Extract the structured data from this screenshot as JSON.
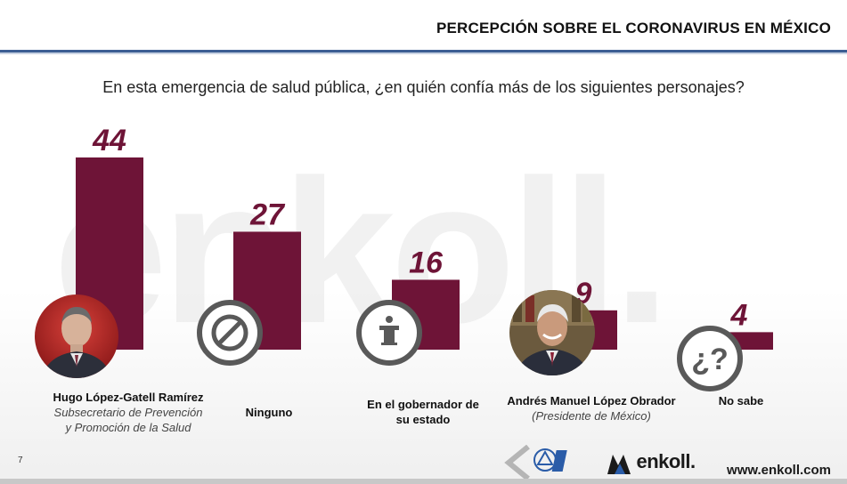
{
  "header": {
    "title": "PERCEPCIÓN SOBRE EL CORONAVIRUS EN MÉXICO"
  },
  "question": "En esta emergencia de salud pública, ¿en quién confía más de los siguientes personajes?",
  "watermark_text": "enkoll.",
  "colors": {
    "bar": "#6e1437",
    "accent_line": "#3c5e93",
    "icon_gray": "#595959"
  },
  "chart_data": {
    "type": "bar",
    "title": "",
    "categories": [
      "Hugo López-Gatell Ramírez",
      "Ninguno",
      "En el gobernador de su estado",
      "Andrés Manuel López Obrador",
      "No sabe"
    ],
    "values": [
      44,
      27,
      16,
      9,
      4
    ],
    "data_labels": [
      "44",
      "27",
      "16",
      "9",
      "4"
    ],
    "xlabel": "",
    "ylabel": "",
    "ylim": [
      0,
      44
    ],
    "grid": false,
    "legend": "none"
  },
  "labels": [
    {
      "name": "Hugo López-Gatell Ramírez",
      "role_line1": "Subsecretario de Prevención",
      "role_line2": "y Promoción de la Salud"
    },
    {
      "name": "Ninguno"
    },
    {
      "name_line1": "En el gobernador de",
      "name_line2": "su estado"
    },
    {
      "name": "Andrés Manuel López Obrador",
      "role": "(Presidente de México)"
    },
    {
      "name": "No sabe"
    }
  ],
  "icons": [
    "person-photo",
    "prohibited-icon",
    "podium-icon",
    "person-photo",
    "question-mark-icon"
  ],
  "icon_text": {
    "no_sabe": "¿?"
  },
  "footer": {
    "page_number": "7",
    "brand": "enkoll.",
    "website": "www.enkoll.com"
  }
}
